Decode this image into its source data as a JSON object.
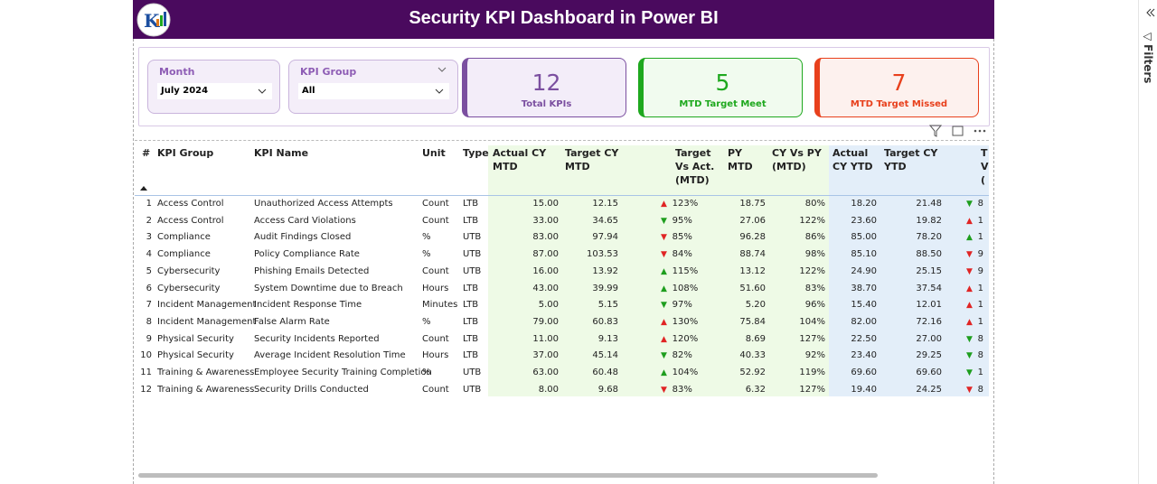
{
  "header": {
    "title": "Security KPI Dashboard in Power BI"
  },
  "slicers": [
    {
      "label": "Month",
      "value": "July 2024"
    },
    {
      "label": "KPI Group",
      "value": "All"
    }
  ],
  "cards": [
    {
      "value": "12",
      "label": "Total KPIs",
      "color": "#7b4fa0",
      "background": "#f3edf9"
    },
    {
      "value": "5",
      "label": "MTD Target Meet",
      "color": "#1ea81e",
      "background": "#f1fbef"
    },
    {
      "value": "7",
      "label": "MTD Target Missed",
      "color": "#e8401c",
      "background": "#fdf1ee"
    }
  ],
  "table": {
    "columns": [
      "#",
      "KPI Group",
      "KPI Name",
      "Unit",
      "Type",
      "Actual CY MTD",
      "Target CY MTD",
      "Target Vs Act. (MTD)",
      "PY MTD",
      "CY Vs PY (MTD)",
      "Actual CY YTD",
      "Target CY YTD",
      "T V ("
    ],
    "rows": [
      [
        "1",
        "Access Control",
        "Unauthorized Access Attempts",
        "Count",
        "LTB",
        "15.00",
        "12.15",
        {
          "text": "▲ 123%",
          "color": "#e02424"
        },
        "18.75",
        "80%",
        "18.20",
        "21.48",
        {
          "text": "▼ 8",
          "color": "#1e9e1e"
        }
      ],
      [
        "2",
        "Access Control",
        "Access Card Violations",
        "Count",
        "LTB",
        "33.00",
        "34.65",
        {
          "text": "▼ 95%",
          "color": "#1e9e1e"
        },
        "27.06",
        "122%",
        "23.60",
        "19.82",
        {
          "text": "▲ 1",
          "color": "#e02424"
        }
      ],
      [
        "3",
        "Compliance",
        "Audit Findings Closed",
        "%",
        "UTB",
        "83.00",
        "97.94",
        {
          "text": "▼ 85%",
          "color": "#e02424"
        },
        "96.28",
        "86%",
        "85.00",
        "78.20",
        {
          "text": "▲ 1",
          "color": "#1e9e1e"
        }
      ],
      [
        "4",
        "Compliance",
        "Policy Compliance Rate",
        "%",
        "UTB",
        "87.00",
        "103.53",
        {
          "text": "▼ 84%",
          "color": "#e02424"
        },
        "88.74",
        "98%",
        "85.10",
        "88.50",
        {
          "text": "▼ 9",
          "color": "#e02424"
        }
      ],
      [
        "5",
        "Cybersecurity",
        "Phishing Emails Detected",
        "Count",
        "UTB",
        "16.00",
        "13.92",
        {
          "text": "▲ 115%",
          "color": "#1e9e1e"
        },
        "13.12",
        "122%",
        "24.90",
        "25.15",
        {
          "text": "▼ 9",
          "color": "#e02424"
        }
      ],
      [
        "6",
        "Cybersecurity",
        "System Downtime due to Breach",
        "Hours",
        "LTB",
        "43.00",
        "39.99",
        {
          "text": "▲ 108%",
          "color": "#1e9e1e"
        },
        "51.60",
        "83%",
        "38.70",
        "37.54",
        {
          "text": "▲ 1",
          "color": "#e02424"
        }
      ],
      [
        "7",
        "Incident Management",
        "Incident Response Time",
        "Minutes",
        "LTB",
        "5.00",
        "5.15",
        {
          "text": "▼ 97%",
          "color": "#1e9e1e"
        },
        "5.20",
        "96%",
        "15.40",
        "12.01",
        {
          "text": "▲ 1",
          "color": "#e02424"
        }
      ],
      [
        "8",
        "Incident Management",
        "False Alarm Rate",
        "%",
        "LTB",
        "79.00",
        "60.83",
        {
          "text": "▲ 130%",
          "color": "#e02424"
        },
        "75.84",
        "104%",
        "82.00",
        "72.16",
        {
          "text": "▲ 1",
          "color": "#e02424"
        }
      ],
      [
        "9",
        "Physical Security",
        "Security Incidents Reported",
        "Count",
        "LTB",
        "11.00",
        "9.13",
        {
          "text": "▲ 120%",
          "color": "#e02424"
        },
        "8.69",
        "127%",
        "22.50",
        "27.00",
        {
          "text": "▼ 8",
          "color": "#1e9e1e"
        }
      ],
      [
        "10",
        "Physical Security",
        "Average Incident Resolution Time",
        "Hours",
        "LTB",
        "37.00",
        "45.14",
        {
          "text": "▼ 82%",
          "color": "#1e9e1e"
        },
        "40.33",
        "92%",
        "23.40",
        "29.25",
        {
          "text": "▼ 8",
          "color": "#1e9e1e"
        }
      ],
      [
        "11",
        "Training & Awareness",
        "Employee Security Training Completion",
        "%",
        "UTB",
        "63.00",
        "60.48",
        {
          "text": "▲ 104%",
          "color": "#1e9e1e"
        },
        "52.92",
        "119%",
        "69.60",
        "69.60",
        {
          "text": "▼ 1",
          "color": "#1e9e1e"
        }
      ],
      [
        "12",
        "Training & Awareness",
        "Security Drills Conducted",
        "Count",
        "UTB",
        "8.00",
        "9.68",
        {
          "text": "▼ 83%",
          "color": "#e02424"
        },
        "6.32",
        "127%",
        "19.40",
        "24.25",
        {
          "text": "▼ 8",
          "color": "#e02424"
        }
      ]
    ]
  },
  "filters_pane": {
    "label": "Filters"
  }
}
